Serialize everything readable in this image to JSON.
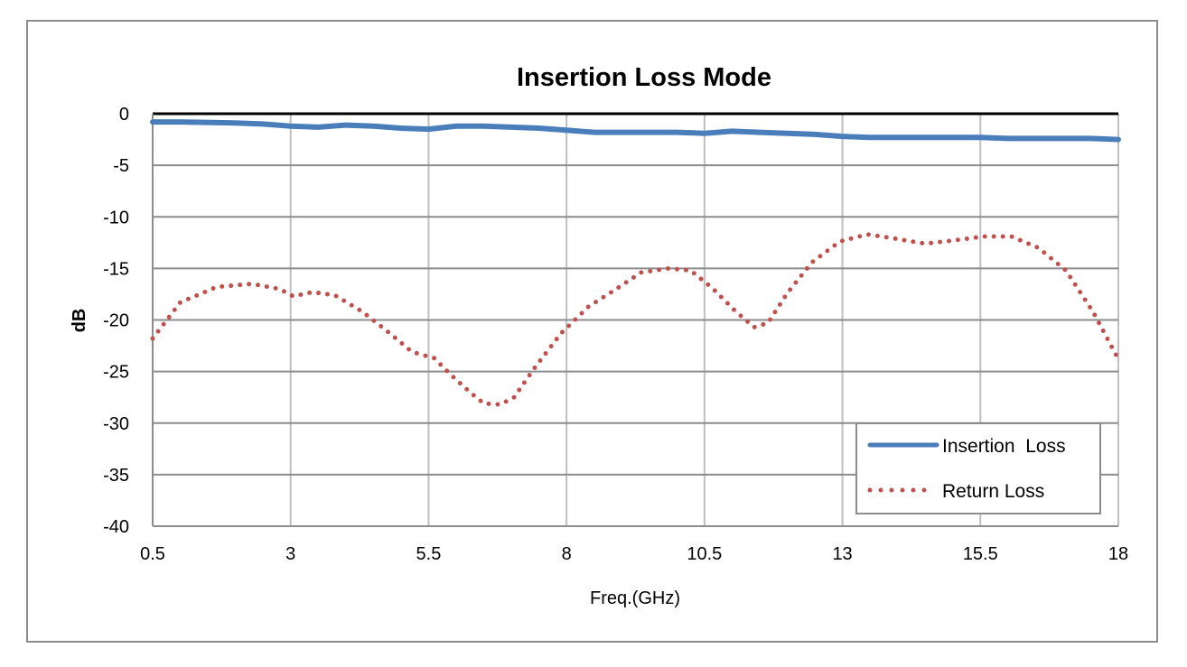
{
  "chart_data": {
    "type": "line",
    "title": "Insertion Loss Mode",
    "xlabel": "Freq.(GHz)",
    "ylabel": "dB",
    "xlim": [
      0.5,
      18
    ],
    "ylim": [
      -40,
      0
    ],
    "x_ticks": [
      "0.5",
      "3",
      "5.5",
      "8",
      "10.5",
      "13",
      "15.5",
      "18"
    ],
    "y_ticks": [
      "0",
      "-5",
      "-10",
      "-15",
      "-20",
      "-25",
      "-30",
      "-35",
      "-40"
    ],
    "grid": true,
    "legend_position": "bottom-right",
    "series": [
      {
        "name": "Insertion  Loss",
        "color": "#4a7ebb",
        "style": "solid",
        "x": [
          0.5,
          1.0,
          2.0,
          2.5,
          3.0,
          3.5,
          4.0,
          4.5,
          5.0,
          5.5,
          6.0,
          6.5,
          7.0,
          7.5,
          8.0,
          8.5,
          9.0,
          9.5,
          10.0,
          10.5,
          11.0,
          11.5,
          12.0,
          12.5,
          13.0,
          13.5,
          14.0,
          14.5,
          15.0,
          15.5,
          16.0,
          16.5,
          17.0,
          17.5,
          18.0
        ],
        "y": [
          -0.8,
          -0.8,
          -0.9,
          -1.0,
          -1.2,
          -1.3,
          -1.1,
          -1.2,
          -1.4,
          -1.5,
          -1.2,
          -1.2,
          -1.3,
          -1.4,
          -1.6,
          -1.8,
          -1.8,
          -1.8,
          -1.8,
          -1.9,
          -1.7,
          -1.8,
          -1.9,
          -2.0,
          -2.2,
          -2.3,
          -2.3,
          -2.3,
          -2.3,
          -2.3,
          -2.4,
          -2.4,
          -2.4,
          -2.4,
          -2.5
        ]
      },
      {
        "name": "Return Loss",
        "color": "#c0504d",
        "style": "dotted",
        "x": [
          0.5,
          1.0,
          1.66,
          2.3,
          2.8,
          3.05,
          3.4,
          3.8,
          4.3,
          4.8,
          5.2,
          5.6,
          5.9,
          6.25,
          6.5,
          6.8,
          7.05,
          7.4,
          7.9,
          8.4,
          8.9,
          9.35,
          9.85,
          10.25,
          10.66,
          11.07,
          11.4,
          11.65,
          12.0,
          12.45,
          12.95,
          13.45,
          13.94,
          14.5,
          15.0,
          15.57,
          16.06,
          16.55,
          17.05,
          17.54,
          18.0
        ],
        "y": [
          -21.8,
          -18.3,
          -16.8,
          -16.5,
          -17.0,
          -17.7,
          -17.3,
          -17.6,
          -19.2,
          -21.3,
          -23.1,
          -23.7,
          -25.3,
          -27.0,
          -28.1,
          -28.2,
          -27.5,
          -24.8,
          -21.3,
          -18.7,
          -17.0,
          -15.4,
          -15.0,
          -15.2,
          -17.0,
          -19.2,
          -20.7,
          -20.3,
          -17.4,
          -14.4,
          -12.4,
          -11.7,
          -12.1,
          -12.6,
          -12.3,
          -11.9,
          -11.9,
          -13.0,
          -15.2,
          -19.2,
          -23.8
        ]
      }
    ]
  }
}
